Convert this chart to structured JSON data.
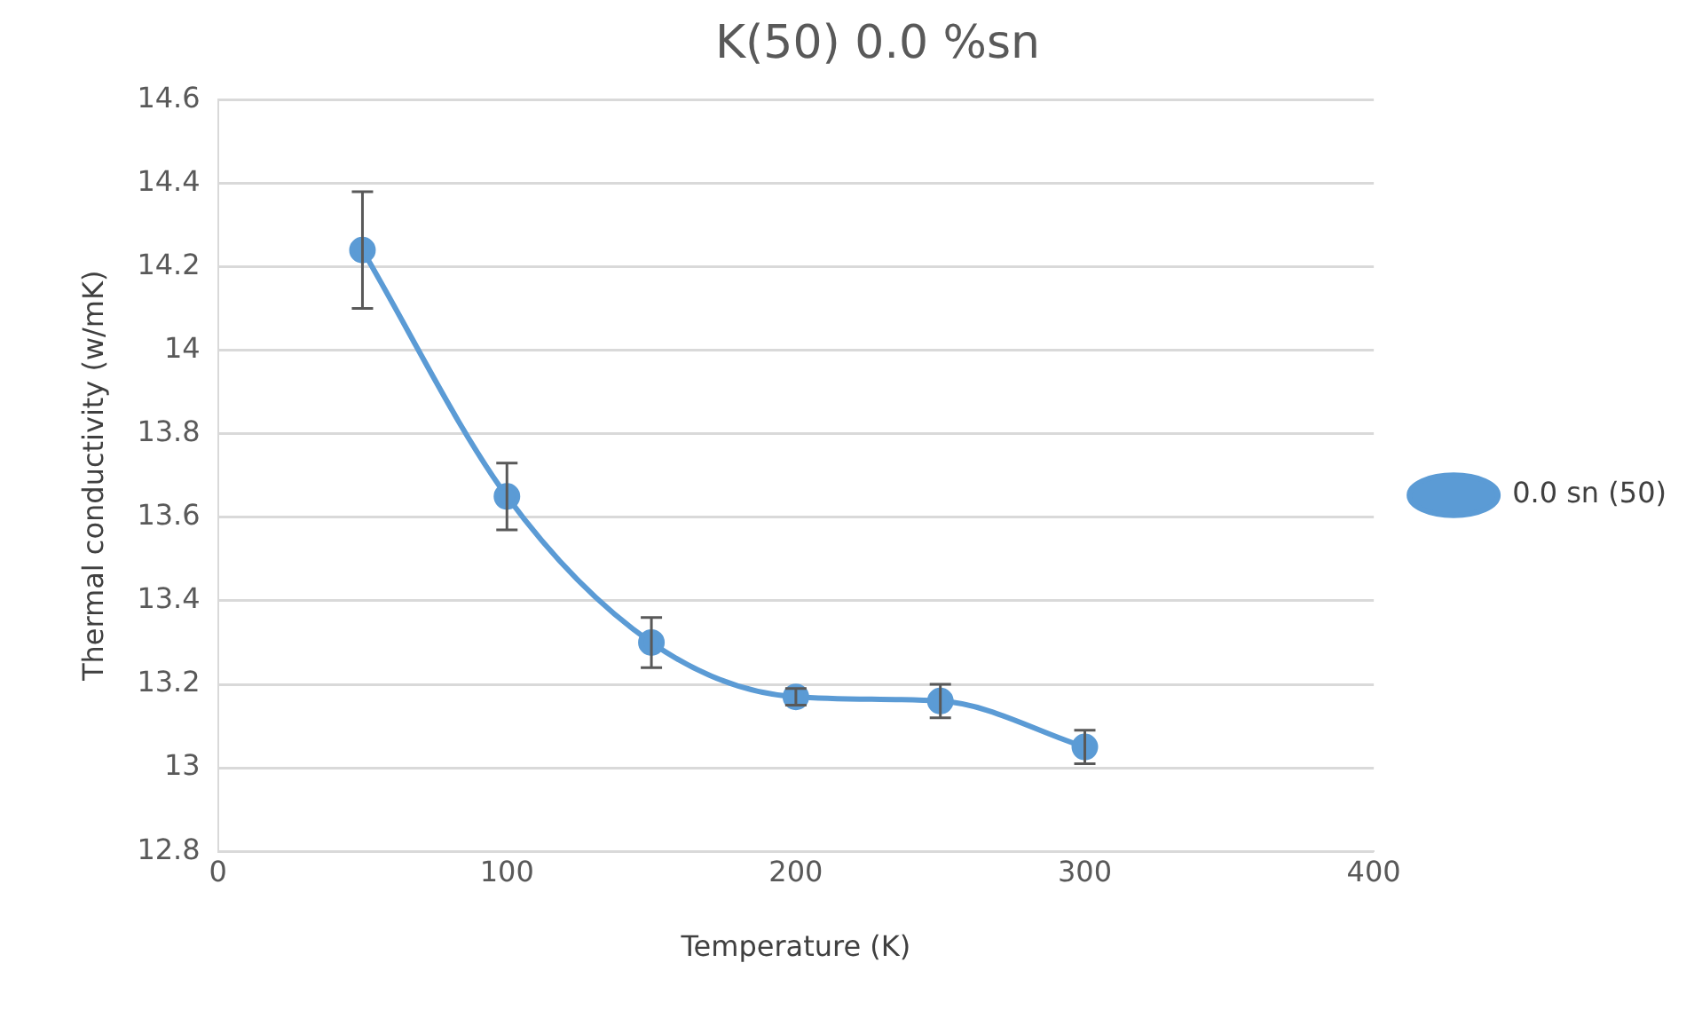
{
  "chart_data": {
    "type": "line",
    "title": "K(50) 0.0 %sn",
    "xlabel": "Temperature (K)",
    "ylabel": "Thermal conductivity (w/mK)",
    "x": [
      50,
      100,
      150,
      200,
      250,
      300
    ],
    "series": [
      {
        "name": "0.0 sn (50)",
        "color": "#5b9bd5",
        "values": [
          14.24,
          13.65,
          13.3,
          13.17,
          13.16,
          13.05
        ],
        "errors": [
          0.14,
          0.08,
          0.06,
          0.02,
          0.04,
          0.04
        ]
      }
    ],
    "xlim": [
      0,
      400
    ],
    "xticks": [
      0,
      100,
      200,
      300,
      400
    ],
    "ylim": [
      12.8,
      14.6
    ],
    "yticks": [
      12.8,
      13,
      13.2,
      13.4,
      13.6,
      13.8,
      14,
      14.2,
      14.4,
      14.6
    ],
    "grid": "y",
    "legend": "right",
    "marker": "circle",
    "line_style": "solid"
  }
}
